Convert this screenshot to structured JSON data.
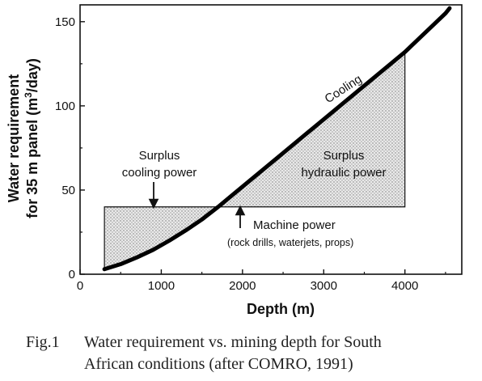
{
  "chart_data": {
    "type": "line",
    "xlabel": "Depth (m)",
    "ylabel_line1": "Water requirement",
    "ylabel_line2_pre": "for 35 m panel (m",
    "ylabel_line2_sup": "3",
    "ylabel_line2_post": "/day)",
    "xlim": [
      0,
      4700
    ],
    "ylim": [
      0,
      160
    ],
    "xticks": [
      "0",
      "1000",
      "2000",
      "3000",
      "4000"
    ],
    "yticks": [
      "0",
      "50",
      "100",
      "150"
    ],
    "series": [
      {
        "name": "Cooling",
        "x": [
          300,
          500,
          700,
          900,
          1100,
          1300,
          1500,
          1700,
          1900,
          2100,
          2500,
          3000,
          3500,
          4000,
          4500,
          4550
        ],
        "y": [
          3,
          6,
          10,
          14.5,
          20,
          26,
          32.5,
          40,
          48,
          56,
          72,
          92,
          112,
          132,
          155,
          158
        ]
      }
    ],
    "machine_power_level": 40,
    "shaded_region_x": [
      300,
      4000
    ],
    "annotations": {
      "cooling": "Cooling",
      "surplus_cooling_1": "Surplus",
      "surplus_cooling_2": "cooling power",
      "surplus_hydraulic_1": "Surplus",
      "surplus_hydraulic_2": "hydraulic power",
      "machine_power": "Machine power",
      "machine_power_detail": "(rock drills, waterjets, props)"
    }
  },
  "caption": {
    "number": "Fig.1",
    "line1": "Water requirement vs. mining depth for South",
    "line2": "African conditions (after COMRO, 1991)"
  }
}
